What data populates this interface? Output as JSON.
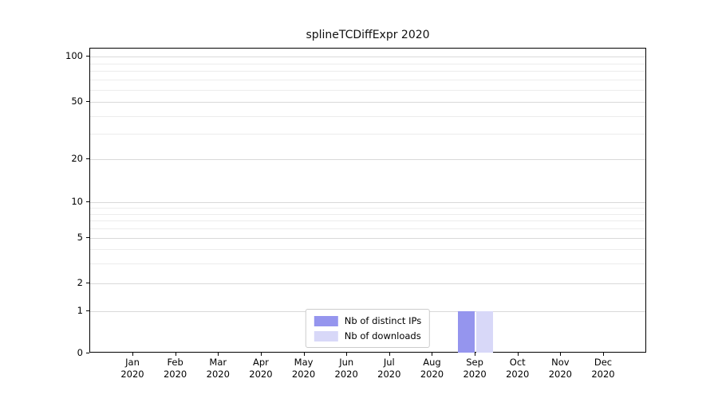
{
  "chart_data": {
    "type": "bar",
    "title": "splineTCDiffExpr 2020",
    "categories": [
      {
        "month": "Jan",
        "year": "2020"
      },
      {
        "month": "Feb",
        "year": "2020"
      },
      {
        "month": "Mar",
        "year": "2020"
      },
      {
        "month": "Apr",
        "year": "2020"
      },
      {
        "month": "May",
        "year": "2020"
      },
      {
        "month": "Jun",
        "year": "2020"
      },
      {
        "month": "Jul",
        "year": "2020"
      },
      {
        "month": "Aug",
        "year": "2020"
      },
      {
        "month": "Sep",
        "year": "2020"
      },
      {
        "month": "Oct",
        "year": "2020"
      },
      {
        "month": "Nov",
        "year": "2020"
      },
      {
        "month": "Dec",
        "year": "2020"
      }
    ],
    "series": [
      {
        "name": "Nb of distinct IPs",
        "color": "#9595ee",
        "values": [
          0,
          0,
          0,
          0,
          0,
          0,
          0,
          0,
          1,
          0,
          0,
          0
        ]
      },
      {
        "name": "Nb of downloads",
        "color": "#d8d8f8",
        "values": [
          0,
          0,
          0,
          0,
          0,
          0,
          0,
          0,
          1,
          0,
          0,
          0
        ]
      }
    ],
    "y_ticks": [
      0,
      1,
      2,
      5,
      10,
      20,
      50,
      100
    ],
    "y_minor_ticks": [
      3,
      4,
      6,
      7,
      8,
      9,
      30,
      40,
      60,
      70,
      80,
      90
    ],
    "ylim": [
      0,
      100
    ],
    "y_scale": "log-like",
    "grid": "horizontal",
    "legend_position": "lower center"
  }
}
